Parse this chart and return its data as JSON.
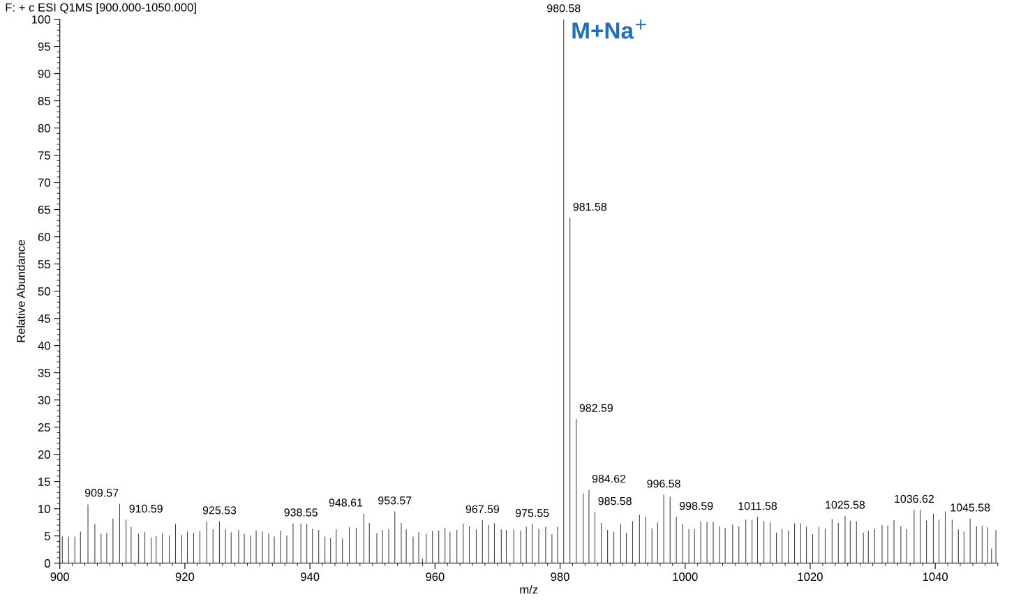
{
  "chart_data": {
    "type": "bar",
    "title": "F: + c ESI Q1MS [900.000-1050.000]",
    "xlabel": "m/z",
    "ylabel": "Relative Abundance",
    "color": "#404040",
    "x": [
      900.4,
      901.4,
      902.4,
      903.3,
      904.5,
      905.6,
      906.6,
      907.5,
      908.5,
      909.57,
      910.59,
      911.4,
      912.6,
      913.6,
      914.6,
      915.4,
      916.4,
      917.5,
      918.5,
      919.5,
      920.4,
      921.4,
      922.4,
      923.5,
      924.5,
      925.53,
      926.5,
      927.4,
      928.6,
      929.5,
      930.5,
      931.4,
      932.4,
      933.4,
      934.3,
      935.3,
      936.3,
      937.3,
      938.55,
      939.5,
      940.4,
      941.4,
      942.4,
      943.3,
      944.2,
      945.2,
      946.3,
      947.4,
      948.61,
      949.5,
      950.7,
      951.6,
      952.6,
      953.57,
      954.6,
      955.4,
      956.5,
      957.4,
      958.0,
      958.6,
      959.6,
      960.6,
      961.6,
      962.4,
      963.5,
      964.5,
      965.5,
      966.6,
      967.59,
      968.6,
      969.5,
      970.6,
      971.4,
      972.6,
      973.7,
      974.6,
      975.55,
      976.6,
      977.7,
      978.7,
      979.6,
      980.58,
      981.58,
      982.59,
      983.7,
      984.62,
      985.58,
      986.6,
      987.6,
      988.6,
      989.7,
      990.6,
      991.6,
      992.7,
      993.7,
      994.7,
      995.6,
      996.58,
      997.6,
      998.59,
      999.6,
      1000.6,
      1001.5,
      1002.5,
      1003.5,
      1004.5,
      1005.5,
      1006.4,
      1007.6,
      1008.6,
      1009.7,
      1010.7,
      1011.58,
      1012.6,
      1013.6,
      1014.6,
      1015.5,
      1016.5,
      1017.5,
      1018.5,
      1019.4,
      1020.4,
      1021.4,
      1022.4,
      1023.5,
      1024.5,
      1025.58,
      1026.4,
      1027.4,
      1028.5,
      1029.3,
      1030.3,
      1031.5,
      1032.4,
      1033.4,
      1034.5,
      1035.4,
      1036.62,
      1037.6,
      1038.6,
      1039.7,
      1040.6,
      1041.6,
      1042.7,
      1043.7,
      1044.6,
      1045.58,
      1046.6,
      1047.5,
      1048.4,
      1049.0,
      1049.7
    ],
    "values": [
      4.9,
      4.9,
      4.9,
      5.8,
      10.8,
      7.2,
      5.4,
      5.5,
      8.2,
      10.9,
      8.0,
      6.7,
      5.4,
      5.7,
      4.7,
      5.0,
      5.5,
      5.1,
      7.2,
      5.2,
      5.8,
      5.5,
      5.9,
      7.6,
      6.2,
      7.7,
      6.2,
      5.7,
      6.1,
      5.4,
      5.1,
      6.0,
      5.8,
      5.4,
      4.9,
      6.0,
      5.1,
      7.3,
      7.3,
      7.2,
      6.3,
      6.1,
      4.9,
      4.6,
      6.2,
      4.5,
      6.6,
      6.5,
      9.1,
      7.4,
      5.5,
      6.1,
      6.2,
      9.5,
      7.4,
      6.2,
      4.9,
      5.7,
      0.8,
      5.4,
      5.9,
      6.0,
      6.5,
      5.7,
      6.1,
      7.3,
      6.8,
      6.2,
      7.9,
      7.0,
      7.3,
      6.2,
      6.1,
      6.2,
      6.0,
      6.7,
      7.2,
      6.3,
      6.7,
      5.3,
      6.7,
      100,
      63.5,
      26.5,
      12.8,
      13.5,
      9.4,
      7.4,
      6.1,
      5.8,
      7.2,
      5.5,
      7.7,
      8.9,
      8.5,
      6.4,
      7.5,
      12.6,
      12.2,
      8.5,
      7.2,
      6.3,
      6.2,
      7.7,
      7.6,
      7.6,
      6.8,
      6.5,
      7.1,
      6.8,
      8.0,
      7.9,
      8.5,
      7.7,
      7.5,
      5.6,
      6.3,
      6.0,
      7.3,
      7.3,
      6.7,
      5.3,
      6.7,
      6.3,
      8.1,
      7.4,
      8.7,
      7.8,
      7.7,
      5.6,
      6.0,
      6.3,
      7.0,
      6.9,
      7.9,
      6.8,
      6.2,
      9.8,
      9.8,
      7.8,
      9.1,
      8.0,
      9.5,
      8.0,
      6.2,
      5.8,
      8.2,
      6.8,
      6.9,
      6.6,
      2.7,
      6.1
    ],
    "annotations": [
      {
        "text": "909.57",
        "x": 909.57,
        "y": 10.9
      },
      {
        "text": "910.59",
        "x": 910.59,
        "y": 8.0
      },
      {
        "text": "925.53",
        "x": 925.53,
        "y": 7.7
      },
      {
        "text": "938.55",
        "x": 938.55,
        "y": 7.3
      },
      {
        "text": "948.61",
        "x": 948.61,
        "y": 9.1
      },
      {
        "text": "953.57",
        "x": 953.57,
        "y": 9.5
      },
      {
        "text": "967.59",
        "x": 967.59,
        "y": 7.9
      },
      {
        "text": "975.55",
        "x": 975.55,
        "y": 7.2
      },
      {
        "text": "980.58",
        "x": 980.58,
        "y": 100
      },
      {
        "text": "981.58",
        "x": 981.58,
        "y": 63.5
      },
      {
        "text": "982.59",
        "x": 982.59,
        "y": 26.5
      },
      {
        "text": "984.62",
        "x": 984.62,
        "y": 13.5
      },
      {
        "text": "985.58",
        "x": 985.58,
        "y": 9.4
      },
      {
        "text": "996.58",
        "x": 996.58,
        "y": 12.6
      },
      {
        "text": "998.59",
        "x": 998.59,
        "y": 8.5
      },
      {
        "text": "1011.58",
        "x": 1011.58,
        "y": 8.5
      },
      {
        "text": "1025.58",
        "x": 1025.58,
        "y": 8.7
      },
      {
        "text": "1036.62",
        "x": 1036.62,
        "y": 9.8
      },
      {
        "text": "1045.58",
        "x": 1045.58,
        "y": 8.2
      },
      "M+Na$^{+}$"
    ],
    "xlim": [
      900,
      1050
    ],
    "xticks": [
      900,
      920,
      940,
      960,
      980,
      1000,
      1020,
      1040
    ],
    "ylim": [
      0,
      100
    ],
    "yticks": [
      0,
      5,
      10,
      15,
      20,
      25,
      30,
      35,
      40,
      45,
      50,
      55,
      60,
      65,
      70,
      75,
      80,
      85,
      90,
      95,
      100
    ],
    "grid": false,
    "legend": false
  }
}
